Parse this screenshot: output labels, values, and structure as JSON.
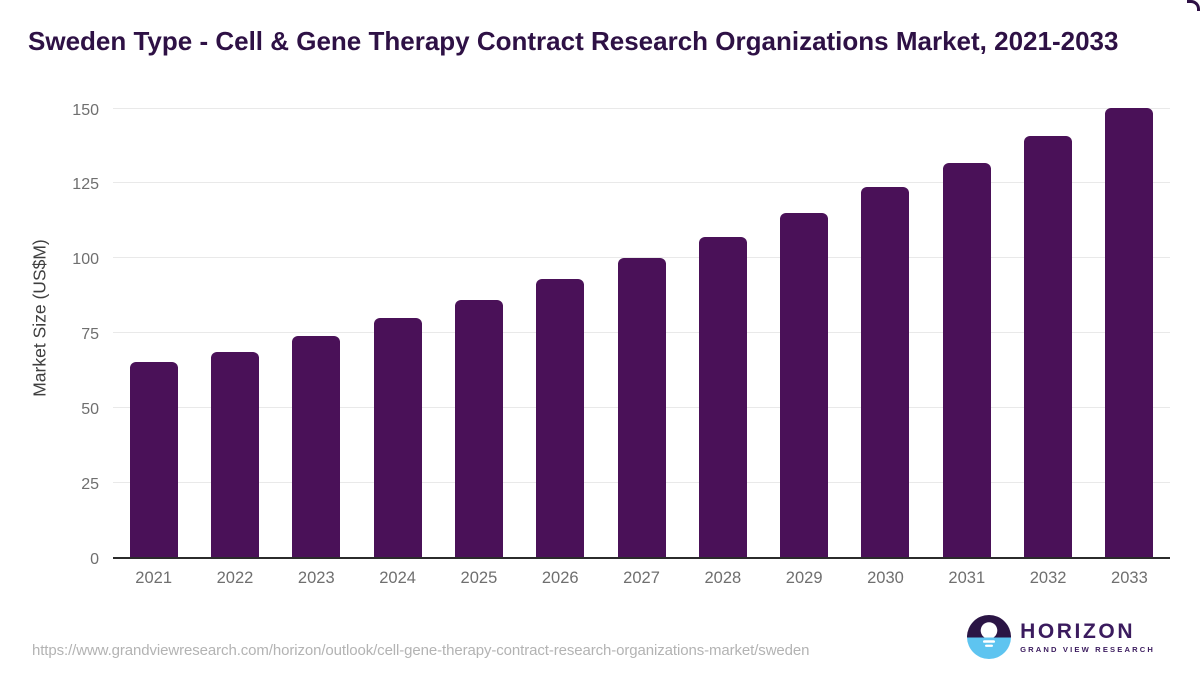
{
  "page": {
    "title": "Sweden Type - Cell & Gene Therapy Contract Research Organizations Market, 2021-2033",
    "source_url": "https://www.grandviewresearch.com/horizon/outlook/cell-gene-therapy-contract-research-organizations-market/sweden"
  },
  "logo": {
    "brand": "HORIZON",
    "subbrand": "GRAND VIEW RESEARCH",
    "icon": "horizon-sun-over-water-icon"
  },
  "colors": {
    "bar": "#4a1158",
    "title_text": "#2e1145",
    "tick_label": "#6f6f6f",
    "axis_title": "#3f3f3f",
    "gridline": "#e9e9e9",
    "axis_line": "#2b2b2b",
    "url_text": "#b3b3b3",
    "logo_text": "#3b1b5e",
    "logo_icon_dark": "#2b1545",
    "logo_icon_blue": "#5ec4f0"
  },
  "chart_data": {
    "type": "bar",
    "title": "Sweden Type - Cell & Gene Therapy Contract Research Organizations Market, 2021-2033",
    "categories": [
      "2021",
      "2022",
      "2023",
      "2024",
      "2025",
      "2026",
      "2027",
      "2028",
      "2029",
      "2030",
      "2031",
      "2032",
      "2033"
    ],
    "values": [
      65,
      68.5,
      74,
      80,
      86,
      93,
      100,
      107,
      115,
      123.5,
      131.5,
      140.5,
      150
    ],
    "xlabel": "",
    "ylabel": "Market Size (US$M)",
    "ylim": [
      0,
      150
    ],
    "yticks": [
      0,
      25,
      50,
      75,
      100,
      125,
      150
    ],
    "grid": true,
    "legend": false,
    "bar_color": "#4a1158"
  }
}
